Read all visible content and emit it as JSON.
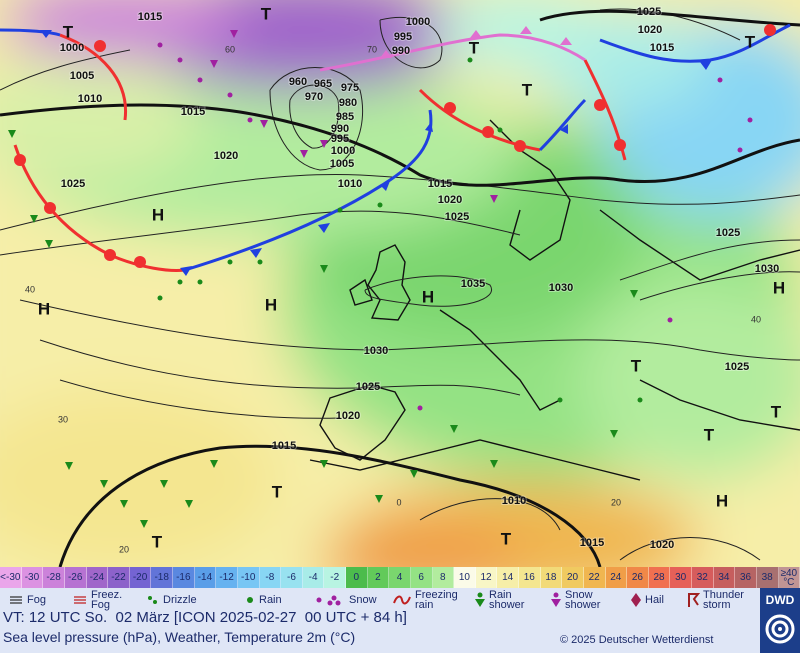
{
  "map": {
    "isobar_labels": [
      "1015",
      "1000",
      "1005",
      "1010",
      "1015",
      "1020",
      "1025",
      "1010",
      "1015",
      "1020",
      "1025",
      "1035",
      "1030",
      "1030",
      "1025",
      "1020",
      "1015",
      "1010",
      "1015",
      "1020",
      "1025",
      "1030",
      "1025",
      "1025",
      "1020",
      "1015",
      "1000",
      "995",
      "990",
      "960",
      "965",
      "975",
      "970",
      "980",
      "985",
      "990",
      "995",
      "1000",
      "1005"
    ],
    "isotherm_labels": [
      "60",
      "40",
      "30",
      "0",
      "20",
      "20",
      "40",
      "70"
    ],
    "pressure_centers": [
      "T",
      "T",
      "T",
      "T",
      "T",
      "H",
      "H",
      "H",
      "H",
      "H",
      "T",
      "T",
      "T",
      "T",
      "T",
      "H",
      "T"
    ]
  },
  "legend": {
    "temperature_scale": {
      "labels": [
        "<-30",
        -30,
        -28,
        -26,
        -24,
        -22,
        -20,
        -18,
        -16,
        -14,
        -12,
        -10,
        -8,
        -6,
        -4,
        -2,
        0,
        2,
        4,
        6,
        8,
        10,
        12,
        14,
        16,
        18,
        20,
        22,
        24,
        26,
        28,
        30,
        32,
        34,
        36,
        38,
        "≥40 °C"
      ],
      "colors": [
        "#eaa6ea",
        "#dc92e2",
        "#cc82da",
        "#b672d2",
        "#a066ca",
        "#8c62ca",
        "#7464d2",
        "#6274d8",
        "#5a88e0",
        "#5a9ee8",
        "#66b2f0",
        "#78c6f4",
        "#88d6f4",
        "#98e2f0",
        "#a8ece8",
        "#b8f4e2",
        "#4cbc4c",
        "#62ca5a",
        "#7ad66e",
        "#94e284",
        "#b2ec9e",
        "#fbfbe8",
        "#f8f6c6",
        "#f6eea8",
        "#f4e690",
        "#f2da78",
        "#f0ca60",
        "#f0b650",
        "#f09e48",
        "#f08848",
        "#f07050",
        "#e66058",
        "#d65c5c",
        "#c65e5e",
        "#b66464",
        "#a87070",
        "#c09494"
      ]
    },
    "weather_symbols": [
      "Fog",
      "Freez. Fog",
      "Drizzle",
      "Rain",
      "Snow",
      "Freezing rain",
      "Rain shower",
      "Snow shower",
      "Hail",
      "Thunder storm"
    ]
  },
  "footer": {
    "valid_time": "VT: 12 UTC So.  02 März [ICON 2025-02-27  00 UTC + 84 h]",
    "description": "Sea level pressure (hPa), Weather, Temperature 2m (°C)",
    "copyright": "© 2025 Deutscher Wetterdienst",
    "logo": "DWD"
  }
}
